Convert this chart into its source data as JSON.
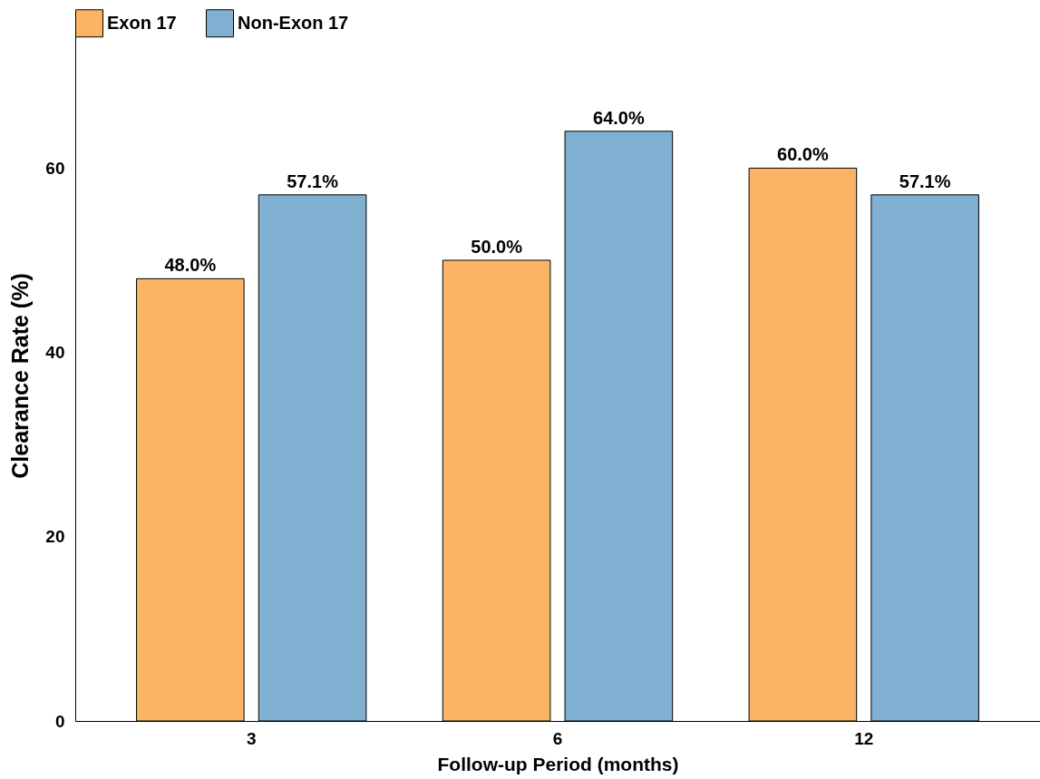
{
  "chart_data": {
    "type": "bar",
    "xlabel": "Follow-up Period (months)",
    "ylabel": "Clearance Rate (%)",
    "categories": [
      "3",
      "6",
      "12"
    ],
    "series": [
      {
        "name": "Exon 17",
        "color": "#fbb464",
        "values": [
          48.0,
          50.0,
          60.0
        ],
        "value_labels": [
          "48.0%",
          "50.0%",
          "60.0%"
        ]
      },
      {
        "name": "Non-Exon 17",
        "color": "#80b1d3",
        "values": [
          57.1,
          64.0,
          57.1
        ],
        "value_labels": [
          "57.1%",
          "64.0%",
          "57.1%"
        ]
      }
    ],
    "ylim": [
      0,
      75
    ],
    "yticks": [
      0,
      20,
      40,
      60
    ],
    "grid": false,
    "legend": "top"
  }
}
